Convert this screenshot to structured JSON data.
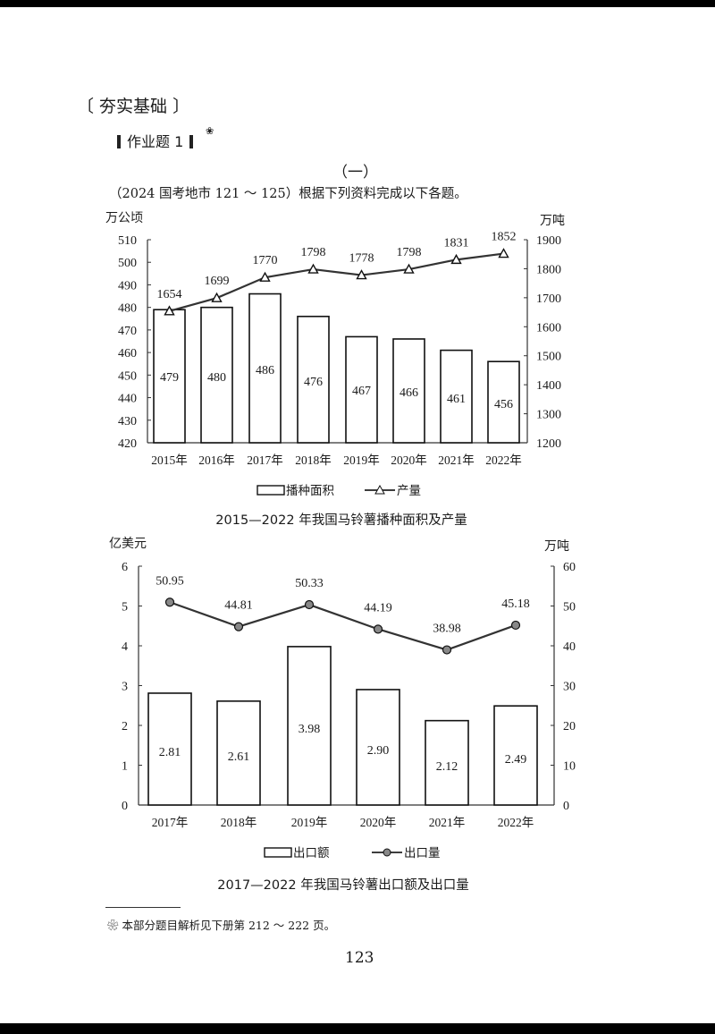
{
  "page": {
    "section_title": "〔 夯实基础 〕",
    "homework_title": "作业题 1",
    "homework_note_mark": "❀",
    "part_title": "（一）",
    "intro": "（2024 国考地市 121 ～ 125）根据下列资料完成以下各题。",
    "footnote": "❀ 本部分题目解析见下册第 212 ～ 222 页。",
    "page_number": "123"
  },
  "chart_data": [
    {
      "type": "bar+line",
      "title": "2015—2022 年我国马铃薯播种面积及产量",
      "categories": [
        "2015年",
        "2016年",
        "2017年",
        "2018年",
        "2019年",
        "2020年",
        "2021年",
        "2022年"
      ],
      "series": [
        {
          "name": "播种面积",
          "kind": "bar",
          "axis": "left",
          "values": [
            479,
            480,
            486,
            476,
            467,
            466,
            461,
            456
          ],
          "labels": [
            "479",
            "480",
            "486",
            "476",
            "467",
            "466",
            "461",
            "456"
          ]
        },
        {
          "name": "产量",
          "kind": "line",
          "marker": "triangle",
          "axis": "right",
          "values": [
            1654,
            1699,
            1770,
            1798,
            1778,
            1798,
            1831,
            1852
          ],
          "labels": [
            "1654",
            "1699",
            "1770",
            "1798",
            "1778",
            "1798",
            "1831",
            "1852"
          ]
        }
      ],
      "ylabel": "万公顷",
      "ylabel_right": "万吨",
      "ylim": [
        420,
        510
      ],
      "ylim_right": [
        1200,
        1900
      ],
      "yticks": [
        "510",
        "500",
        "490",
        "480",
        "470",
        "460",
        "450",
        "440",
        "430",
        "420"
      ],
      "yticks_right": [
        "1900",
        "1800",
        "1700",
        "1600",
        "1500",
        "1400",
        "1300",
        "1200"
      ],
      "legend": [
        "播种面积",
        "产量"
      ],
      "legend_position": "bottom",
      "grid": false
    },
    {
      "type": "bar+line",
      "title": "2017—2022 年我国马铃薯出口额及出口量",
      "categories": [
        "2017年",
        "2018年",
        "2019年",
        "2020年",
        "2021年",
        "2022年"
      ],
      "series": [
        {
          "name": "出口额",
          "kind": "bar",
          "axis": "left",
          "values": [
            2.81,
            2.61,
            3.98,
            2.9,
            2.12,
            2.49
          ],
          "labels": [
            "2.81",
            "2.61",
            "3.98",
            "2.90",
            "2.12",
            "2.49"
          ]
        },
        {
          "name": "出口量",
          "kind": "line",
          "marker": "circle",
          "axis": "right",
          "values": [
            50.95,
            44.81,
            50.33,
            44.19,
            38.98,
            45.18
          ],
          "labels": [
            "50.95",
            "44.81",
            "50.33",
            "44.19",
            "38.98",
            "45.18"
          ]
        }
      ],
      "ylabel": "亿美元",
      "ylabel_right": "万吨",
      "ylim": [
        0,
        6
      ],
      "ylim_right": [
        0,
        60
      ],
      "yticks": [
        "6",
        "5",
        "4",
        "3",
        "2",
        "1",
        "0"
      ],
      "yticks_right": [
        "60",
        "50",
        "40",
        "30",
        "20",
        "10",
        "0"
      ],
      "legend": [
        "出口额",
        "出口量"
      ],
      "legend_position": "bottom",
      "grid": false
    }
  ]
}
